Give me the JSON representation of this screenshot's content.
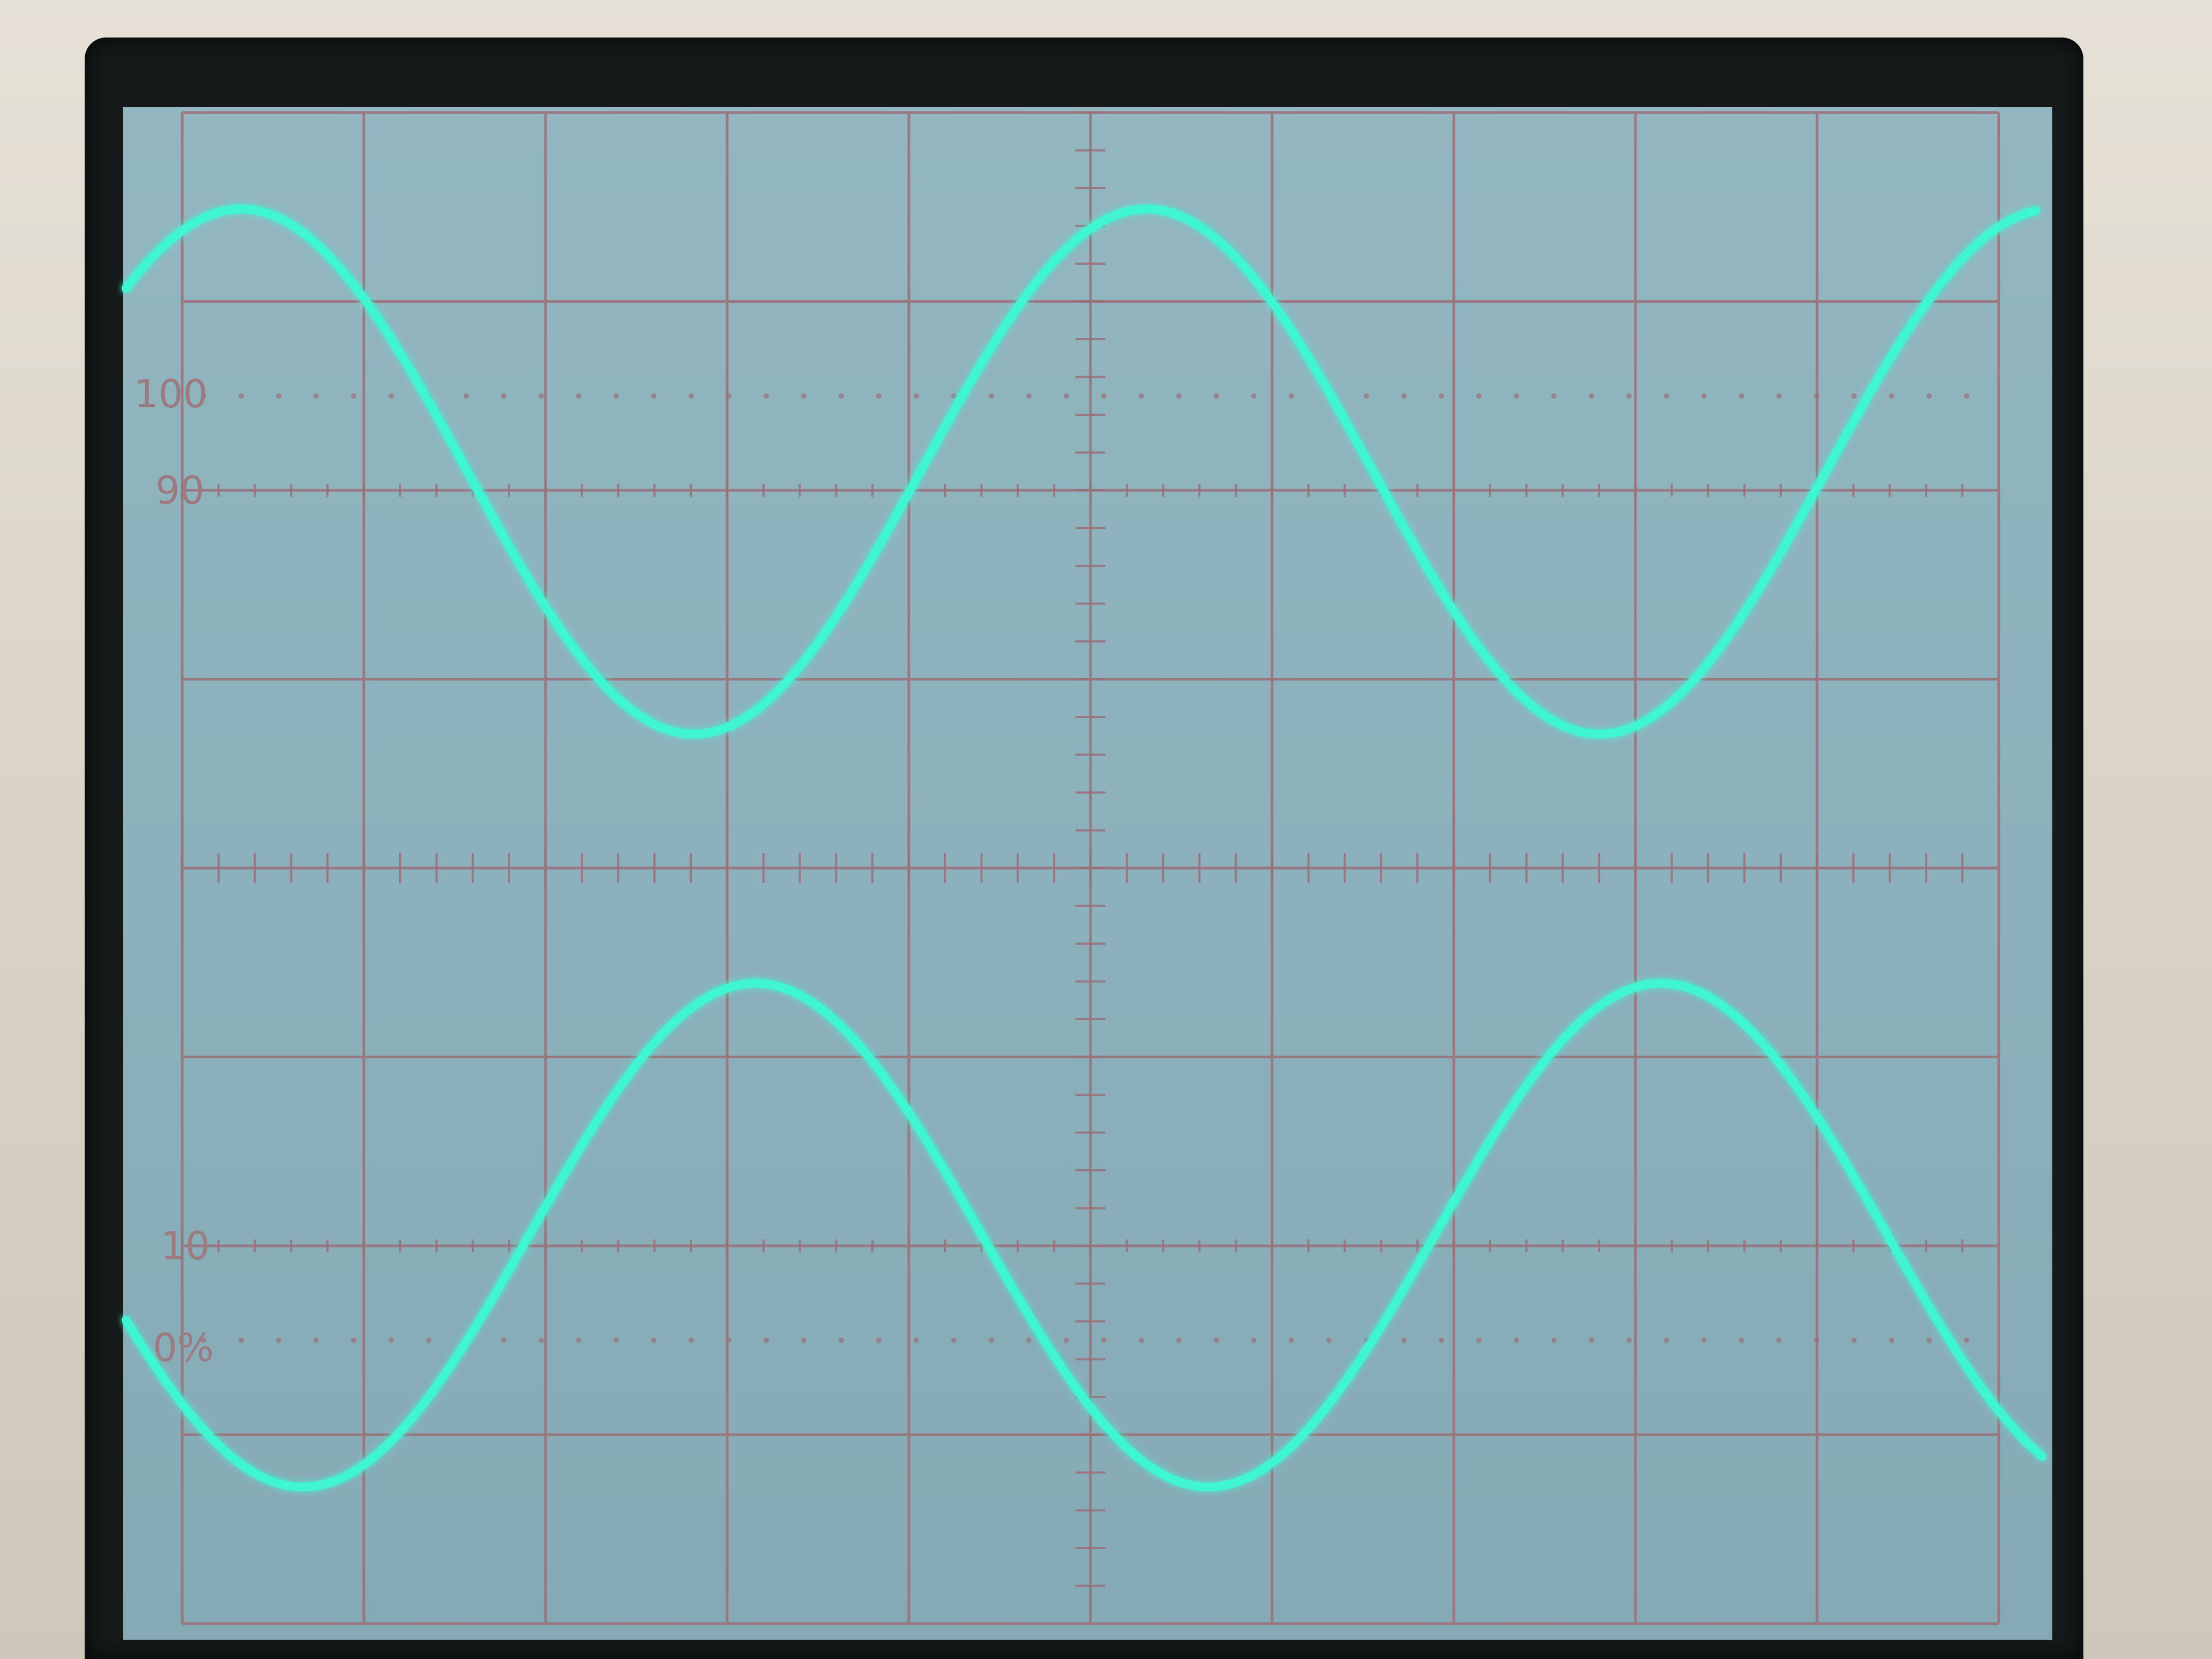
{
  "graticule": {
    "label_100": "100",
    "label_90": "90",
    "label_10": "10",
    "label_0": "0%"
  },
  "colors": {
    "screen": "#8fb4bf",
    "grid": "#9b6f78",
    "trace": "#3ff5d2",
    "bezel": "#15191a",
    "housing": "#e2ddd2"
  },
  "traces": [
    {
      "shape": "sine",
      "cycles_visible": 2,
      "phase": "starts-near-peak"
    },
    {
      "shape": "sine",
      "cycles_visible": 2,
      "phase": "starts-near-trough"
    }
  ]
}
